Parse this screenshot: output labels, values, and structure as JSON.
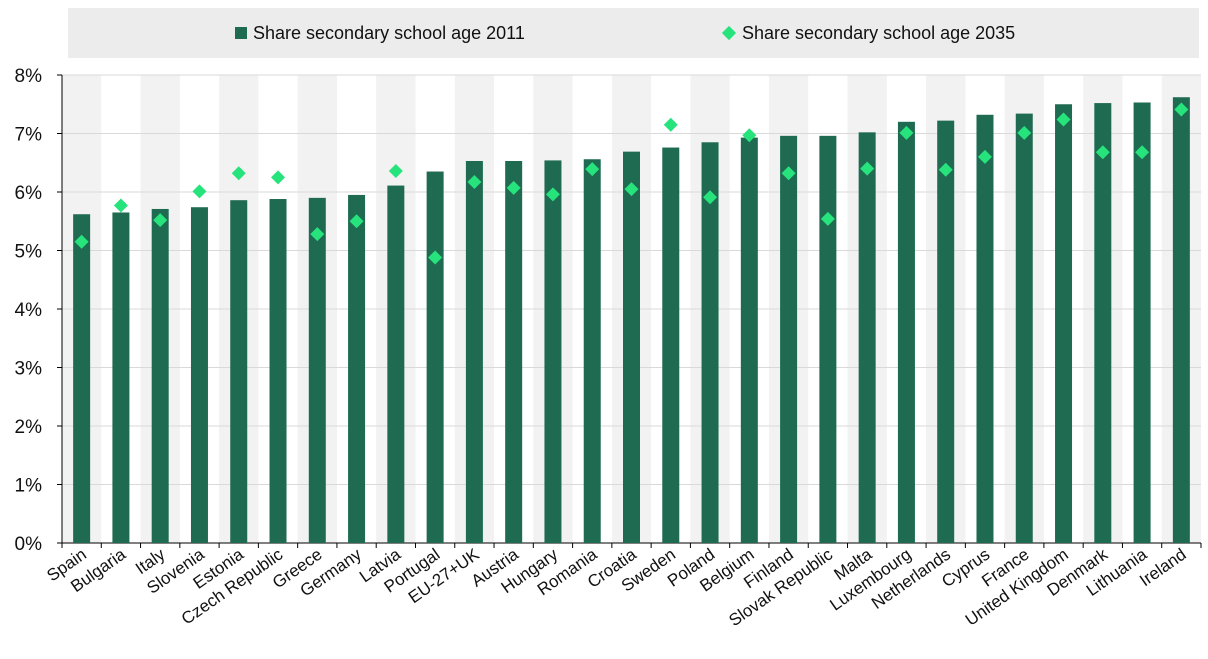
{
  "legend": {
    "series_2011": "Share secondary school age 2011",
    "series_2035": "Share secondary school age 2035"
  },
  "colors": {
    "bar": "#1f6b52",
    "marker": "#27e37c",
    "grid": "#d9d9d9",
    "axis": "#000000",
    "legend_bg": "#ececec",
    "band": "#f2f2f2"
  },
  "chart_data": {
    "type": "bar",
    "title": "",
    "xlabel": "",
    "ylabel": "",
    "ylim": [
      0,
      8
    ],
    "y_ticks": [
      0,
      1,
      2,
      3,
      4,
      5,
      6,
      7,
      8
    ],
    "y_tick_labels": [
      "0%",
      "1%",
      "2%",
      "3%",
      "4%",
      "5%",
      "6%",
      "7%",
      "8%"
    ],
    "grid": true,
    "legend_position": "top",
    "categories": [
      "Spain",
      "Bulgaria",
      "Italy",
      "Slovenia",
      "Estonia",
      "Czech Republic",
      "Greece",
      "Germany",
      "Latvia",
      "Portugal",
      "EU-27+UK",
      "Austria",
      "Hungary",
      "Romania",
      "Croatia",
      "Sweden",
      "Poland",
      "Belgium",
      "Finland",
      "Slovak Republic",
      "Malta",
      "Luxembourg",
      "Netherlands",
      "Cyprus",
      "France",
      "United Kingdom",
      "Denmark",
      "Lithuania",
      "Ireland"
    ],
    "series": [
      {
        "name": "Share secondary school age 2011",
        "kind": "bar",
        "values": [
          5.62,
          5.65,
          5.71,
          5.74,
          5.86,
          5.88,
          5.9,
          5.95,
          6.11,
          6.35,
          6.53,
          6.53,
          6.54,
          6.56,
          6.69,
          6.76,
          6.85,
          6.93,
          6.96,
          6.96,
          7.02,
          7.2,
          7.22,
          7.32,
          7.34,
          7.5,
          7.52,
          7.53,
          7.62
        ]
      },
      {
        "name": "Share secondary school age 2035",
        "kind": "marker",
        "values": [
          5.15,
          5.77,
          5.52,
          6.01,
          6.32,
          6.25,
          5.28,
          5.5,
          6.36,
          4.88,
          6.17,
          6.07,
          5.96,
          6.39,
          6.05,
          7.15,
          5.91,
          6.97,
          6.32,
          5.54,
          6.4,
          7.01,
          6.38,
          6.6,
          7.01,
          7.24,
          6.68,
          6.68,
          7.41
        ]
      }
    ]
  }
}
